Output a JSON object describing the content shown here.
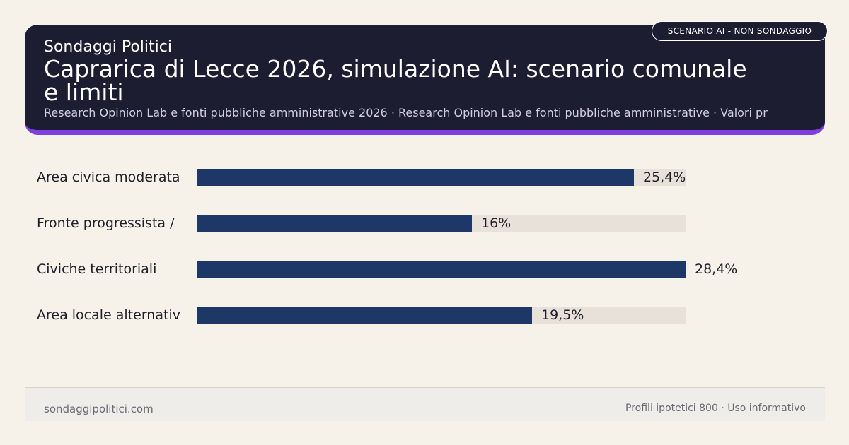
{
  "header": {
    "brand": "Sondaggi Politici",
    "title": "Caprarica di Lecce 2026, simulazione AI: scenario comunale e limiti",
    "subtitle": "Research Opinion Lab e fonti pubbliche amministrative 2026 · Research Opinion Lab e fonti pubbliche amministrative · Valori pr",
    "tag": "SCENARIO AI - NON SONDAGGIO"
  },
  "chart_data": {
    "type": "bar",
    "orientation": "horizontal",
    "categories": [
      "Area civica moderata",
      "Fronte progressista /",
      "Civiche territoriali",
      "Area locale alternativ"
    ],
    "values": [
      25.4,
      16,
      28.4,
      19.5
    ],
    "value_labels": [
      "25,4%",
      "16%",
      "28,4%",
      "19,5%"
    ],
    "xlim": [
      0,
      28.4
    ],
    "title": "",
    "xlabel": "",
    "ylabel": "",
    "grid": false,
    "colors": {
      "bar": "#1d3767",
      "track": "#e8e1d9"
    }
  },
  "footer": {
    "site": "sondaggipolitici.com",
    "note": "Profili ipotetici 800 · Uso informativo"
  },
  "colors": {
    "header_bg": "#1c1d31",
    "accent": "#7e3fe1",
    "page_bg": "#f6f2ea"
  }
}
